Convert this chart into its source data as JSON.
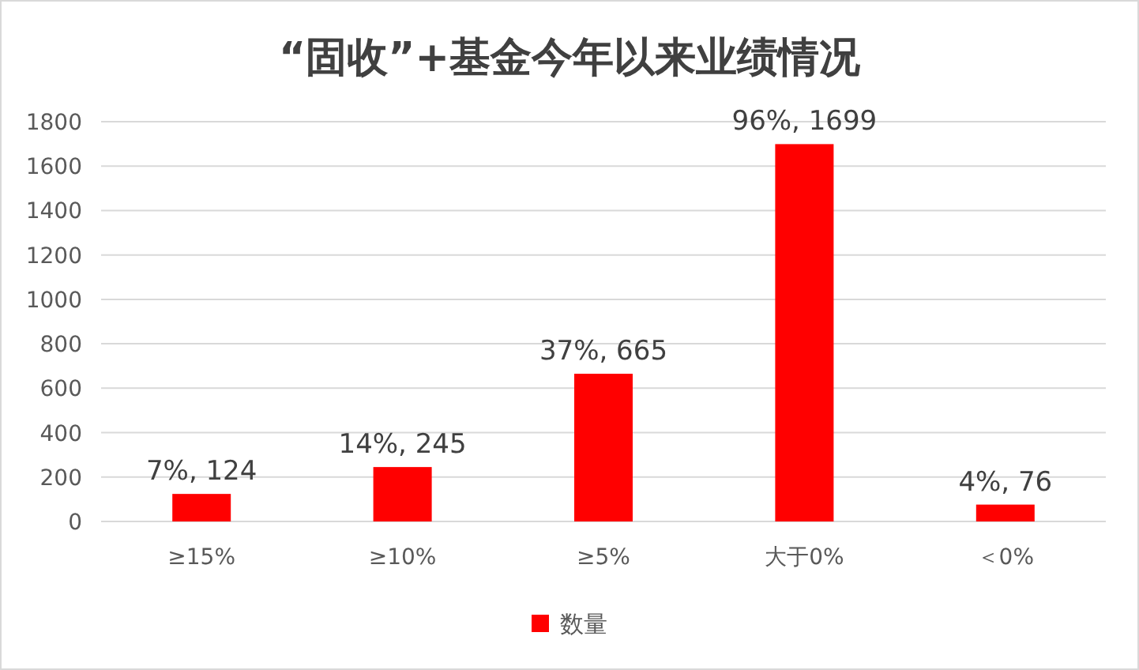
{
  "chart_data": {
    "type": "bar",
    "title": "“固收”+基金今年以来业绩情况",
    "categories": [
      "≥15%",
      "≥10%",
      "≥5%",
      "大于0%",
      "＜0%"
    ],
    "series": [
      {
        "name": "数量",
        "color": "#ff0000",
        "values": [
          124,
          245,
          665,
          1699,
          76
        ],
        "value_labels": [
          "7%, 124",
          "14%, 245",
          "37%, 665",
          "96%, 1699",
          "4%, 76"
        ]
      }
    ],
    "ylim": [
      0,
      1800
    ],
    "yticks": [
      0,
      200,
      400,
      600,
      800,
      1000,
      1200,
      1400,
      1600,
      1800
    ],
    "grid": "y",
    "legend": "bottom"
  }
}
